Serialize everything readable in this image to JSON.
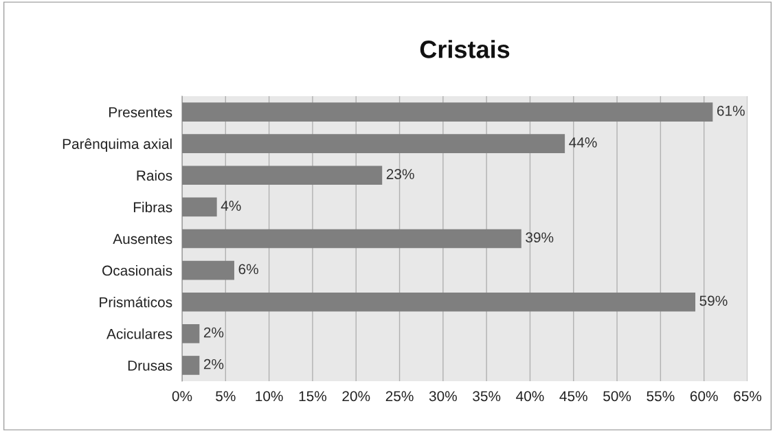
{
  "chart_data": {
    "type": "bar",
    "title": "Cristais",
    "orientation": "horizontal",
    "categories": [
      "Presentes",
      "Parênquima axial",
      "Raios",
      "Fibras",
      "Ausentes",
      "Ocasionais",
      "Prismáticos",
      "Aciculares",
      "Drusas"
    ],
    "values": [
      61,
      44,
      23,
      4,
      39,
      6,
      59,
      2,
      2
    ],
    "value_labels": [
      "61%",
      "44%",
      "23%",
      "4%",
      "39%",
      "6%",
      "59%",
      "2%",
      "2%"
    ],
    "color": "#7f7f7f",
    "xlim": [
      0,
      65
    ],
    "xticks": [
      {
        "value": 0,
        "label": "0%"
      },
      {
        "value": 5,
        "label": "5%"
      },
      {
        "value": 10,
        "label": "10%"
      },
      {
        "value": 15,
        "label": "15%"
      },
      {
        "value": 20,
        "label": "20%"
      },
      {
        "value": 25,
        "label": "25%"
      },
      {
        "value": 30,
        "label": "30%"
      },
      {
        "value": 35,
        "label": "35%"
      },
      {
        "value": 40,
        "label": "40%"
      },
      {
        "value": 45,
        "label": "45%"
      },
      {
        "value": 50,
        "label": "50%"
      },
      {
        "value": 55,
        "label": "55%"
      },
      {
        "value": 60,
        "label": "60%"
      },
      {
        "value": 65,
        "label": "65%"
      }
    ],
    "grid": "x",
    "legend": false
  }
}
